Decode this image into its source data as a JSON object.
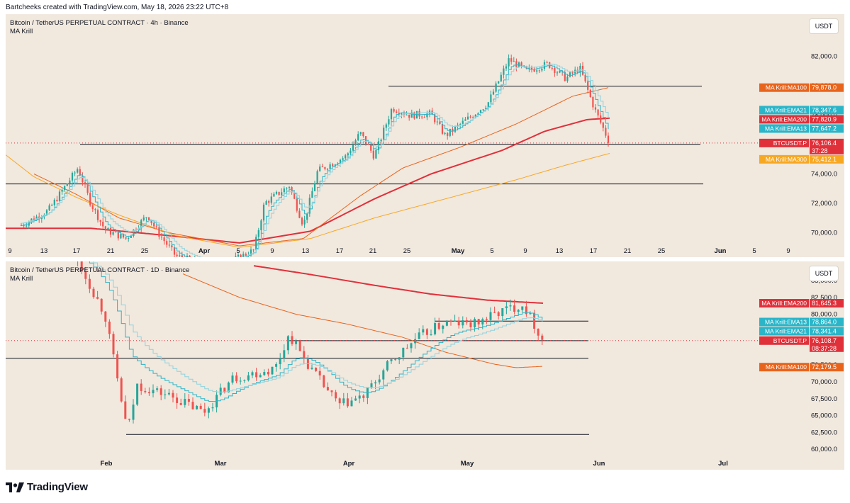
{
  "header": {
    "attribution": "Bartcheeks created with TradingView.com, May 18, 2026 23:22 UTC+8"
  },
  "footer": {
    "brand": "TradingView"
  },
  "colors": {
    "background": "#f1e8de",
    "up": "#26a69a",
    "down": "#ef5350",
    "ema13": "#2ab5c8",
    "ema21": "#8fd3de",
    "ema200": "#e0303a",
    "ma100": "#e8641c",
    "ma300": "#f7a823",
    "price": "#e0303a"
  },
  "panes": [
    {
      "title": "Bitcoin / TetherUS PERPETUAL CONTRACT · 4h · Binance",
      "indicator": "MA Krill",
      "currency": "USDT",
      "x_ticks": [
        "9",
        "13",
        "17",
        "21",
        "25",
        "Apr",
        "5",
        "9",
        "13",
        "17",
        "21",
        "25",
        "May",
        "5",
        "9",
        "13",
        "17",
        "21",
        "25",
        "Jun",
        "5",
        "9"
      ],
      "y_ticks": [
        "82,000.0",
        "80,000.0",
        "78,000.0",
        "76,000.0",
        "74,000.0",
        "72,000.0",
        "70,000.0"
      ],
      "tags": [
        {
          "label": "MA Krill:MA100",
          "value": "79,878.0",
          "color": "#e8641c"
        },
        {
          "label": "MA Krill:EMA21",
          "value": "78,347.6",
          "color": "#2ab5c8"
        },
        {
          "label": "MA Krill:EMA200",
          "value": "77,820.9",
          "color": "#e0303a"
        },
        {
          "label": "MA Krill:EMA13",
          "value": "77,647.2",
          "color": "#2ab5c8"
        },
        {
          "label": "BTCUSDT.P",
          "value": "76,106.4",
          "countdown": "37:28",
          "color": "#e0303a"
        },
        {
          "label": "MA Krill:MA300",
          "value": "75,412.1",
          "color": "#f7a823"
        }
      ]
    },
    {
      "title": "Bitcoin / TetherUS PERPETUAL CONTRACT · 1D · Binance",
      "indicator": "MA Krill",
      "currency": "USDT",
      "x_ticks": [
        "Feb",
        "Mar",
        "Apr",
        "May",
        "Jun",
        "Jul"
      ],
      "y_ticks": [
        "85,000.0",
        "82,500.0",
        "80,000.0",
        "77,500.0",
        "75,000.0",
        "72,500.0",
        "70,000.0",
        "67,500.0",
        "65,000.0",
        "62,500.0",
        "60,000.0"
      ],
      "tags": [
        {
          "label": "MA Krill:EMA200",
          "value": "81,645.3",
          "color": "#e0303a"
        },
        {
          "label": "MA Krill:EMA13",
          "value": "78,864.0",
          "color": "#2ab5c8"
        },
        {
          "label": "MA Krill:EMA21",
          "value": "78,341.4",
          "color": "#2ab5c8"
        },
        {
          "label": "BTCUSDT.P",
          "value": "76,108.7",
          "countdown": "08:37:28",
          "color": "#e0303a"
        },
        {
          "label": "MA Krill:MA100",
          "value": "72,179.5",
          "color": "#e8641c"
        }
      ]
    }
  ],
  "chart_data": [
    {
      "type": "line",
      "title": "Bitcoin / TetherUS PERPETUAL CONTRACT · 4h · Binance",
      "xlabel": "",
      "ylabel": "",
      "x": [
        "9",
        "13",
        "17",
        "21",
        "25",
        "Apr",
        "5",
        "9",
        "13",
        "17",
        "21",
        "25",
        "May",
        "5",
        "9",
        "13",
        "17"
      ],
      "ylim": [
        69200,
        84400
      ],
      "series": [
        {
          "name": "BTCUSDT.P",
          "values": [
            70400,
            70600,
            73800,
            70200,
            70600,
            69200,
            69800,
            73000,
            70800,
            75600,
            75800,
            78800,
            76400,
            81800,
            81400,
            81200,
            76100
          ]
        },
        {
          "name": "MA Krill:EMA200",
          "values": [
            70300,
            70300,
            70200,
            69900,
            69600,
            69200,
            69300,
            69600,
            70000,
            71000,
            72200,
            73400,
            74300,
            75400,
            76400,
            77300,
            77800
          ]
        },
        {
          "name": "MA Krill:MA100",
          "values": [
            75000,
            74200,
            73200,
            71600,
            70400,
            69600,
            69300,
            69700,
            70200,
            72400,
            74000,
            75800,
            76000,
            77800,
            78700,
            79400,
            79900
          ]
        },
        {
          "name": "MA Krill:MA300",
          "values": [
            null,
            null,
            null,
            null,
            null,
            null,
            null,
            null,
            69600,
            70300,
            71000,
            71700,
            72300,
            73000,
            73700,
            74600,
            75400
          ]
        }
      ],
      "horizontal_levels": [
        79980,
        76020,
        73320
      ]
    },
    {
      "type": "line",
      "title": "Bitcoin / TetherUS PERPETUAL CONTRACT · 1D · Binance",
      "xlabel": "",
      "ylabel": "",
      "x": [
        "Feb",
        "Mar",
        "Apr",
        "May",
        "Jun"
      ],
      "ylim": [
        59500,
        87000
      ],
      "series": [
        {
          "name": "BTCUSDT.P",
          "values": [
            78500,
            67200,
            66400,
            78800,
            76108
          ]
        },
        {
          "name": "MA Krill:EMA200",
          "values": [
            86500,
            84900,
            83300,
            82000,
            81600
          ]
        },
        {
          "name": "MA Krill:MA100",
          "values": [
            83500,
            80000,
            77000,
            73000,
            72200
          ]
        }
      ],
      "horizontal_levels": [
        79000,
        76100,
        73500,
        62200
      ]
    }
  ]
}
